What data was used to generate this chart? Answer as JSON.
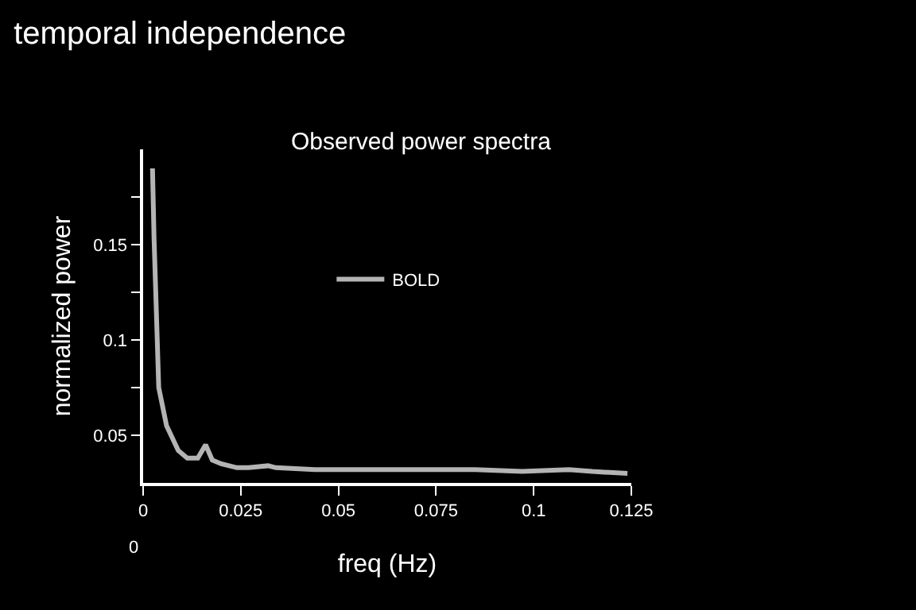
{
  "chart_data": {
    "type": "line",
    "title": "temporal independence",
    "subtitle": "Observed power spectra",
    "xlabel": "freq (Hz)",
    "ylabel": "normalized power",
    "annotations": [
      "0"
    ],
    "series": [
      {
        "name": "BOLD",
        "color": "#b4b4b4",
        "x": [
          0.0024,
          0.0028,
          0.004,
          0.006,
          0.009,
          0.0113,
          0.014,
          0.016,
          0.0177,
          0.02,
          0.024,
          0.027,
          0.032,
          0.034,
          0.044,
          0.056,
          0.065,
          0.085,
          0.097,
          0.109,
          0.115,
          0.124
        ],
        "values": [
          0.19,
          0.153,
          0.075,
          0.055,
          0.042,
          0.038,
          0.038,
          0.045,
          0.037,
          0.035,
          0.033,
          0.033,
          0.034,
          0.033,
          0.032,
          0.032,
          0.032,
          0.032,
          0.031,
          0.032,
          0.031,
          0.03
        ]
      }
    ],
    "xlim": [
      0,
      0.125
    ],
    "xticks": [
      0,
      0.025,
      0.05,
      0.075,
      0.1,
      0.125
    ],
    "ylim": [
      0.025,
      0.2
    ],
    "yticks": [
      0.05,
      {
        "value": 0.075,
        "label": null
      },
      0.1,
      {
        "value": 0.125,
        "label": null
      },
      0.15,
      {
        "value": 0.175,
        "label": null
      }
    ],
    "grid": false,
    "legend": "top",
    "marker": "none",
    "line_style": "solid"
  }
}
